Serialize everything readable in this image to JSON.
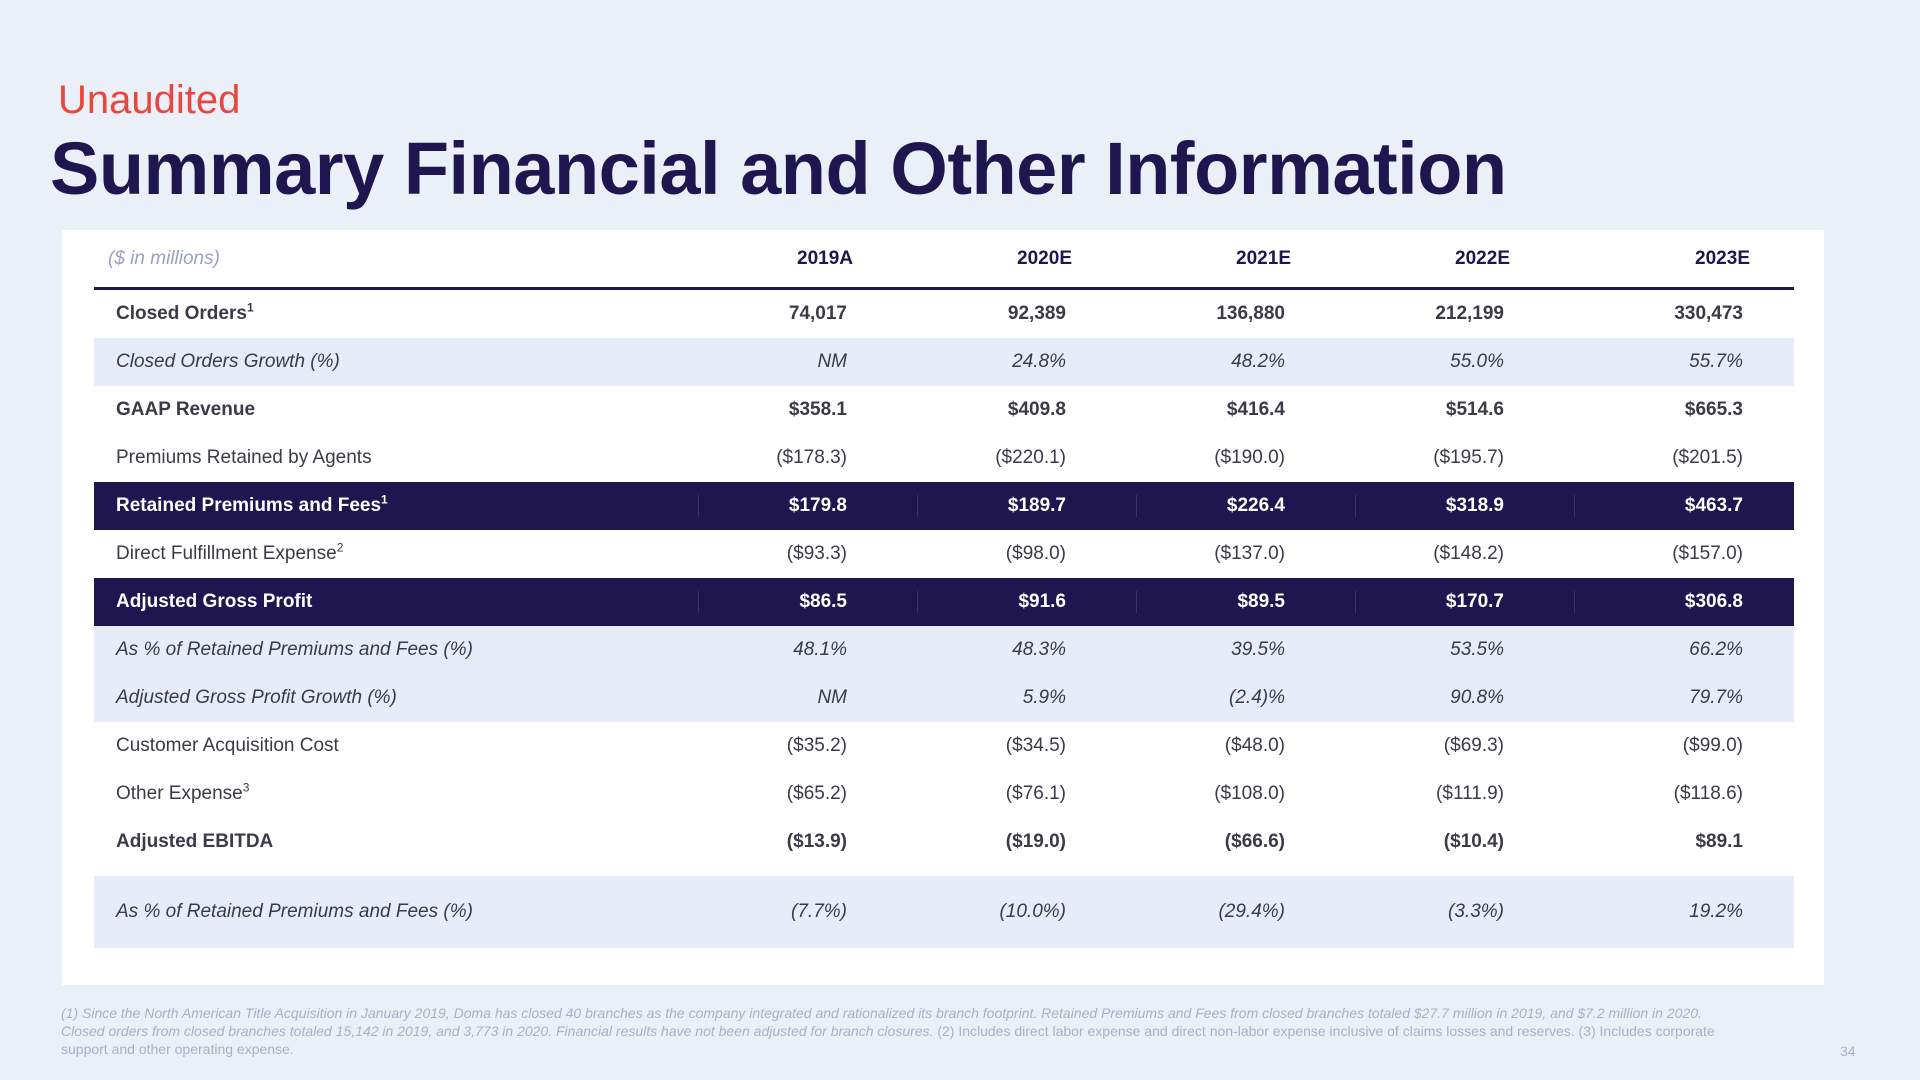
{
  "header": {
    "status": "Unaudited",
    "title": "Summary Financial and Other Information"
  },
  "table": {
    "unit_label": "($ in millions)",
    "columns": [
      "2019A",
      "2020E",
      "2021E",
      "2022E",
      "2023E"
    ],
    "rows": [
      {
        "label": "Closed Orders",
        "sup": "1",
        "values": [
          "74,017",
          "92,389",
          "136,880",
          "212,199",
          "330,473"
        ]
      },
      {
        "label": "Closed Orders Growth (%)",
        "sup": "",
        "values": [
          "NM",
          "24.8%",
          "48.2%",
          "55.0%",
          "55.7%"
        ]
      },
      {
        "label": "GAAP Revenue",
        "sup": "",
        "values": [
          "$358.1",
          "$409.8",
          "$416.4",
          "$514.6",
          "$665.3"
        ]
      },
      {
        "label": "Premiums Retained by Agents",
        "sup": "",
        "values": [
          "($178.3)",
          "($220.1)",
          "($190.0)",
          "($195.7)",
          "($201.5)"
        ]
      },
      {
        "label": "Retained Premiums and Fees",
        "sup": "1",
        "values": [
          "$179.8",
          "$189.7",
          "$226.4",
          "$318.9",
          "$463.7"
        ]
      },
      {
        "label": "Direct Fulfillment Expense",
        "sup": "2",
        "values": [
          "($93.3)",
          "($98.0)",
          "($137.0)",
          "($148.2)",
          "($157.0)"
        ]
      },
      {
        "label": "Adjusted Gross Profit",
        "sup": "",
        "values": [
          "$86.5",
          "$91.6",
          "$89.5",
          "$170.7",
          "$306.8"
        ]
      },
      {
        "label": "As % of Retained Premiums and Fees (%)",
        "sup": "",
        "values": [
          "48.1%",
          "48.3%",
          "39.5%",
          "53.5%",
          "66.2%"
        ]
      },
      {
        "label": "Adjusted Gross Profit Growth (%)",
        "sup": "",
        "values": [
          "NM",
          "5.9%",
          "(2.4)%",
          "90.8%",
          "79.7%"
        ]
      },
      {
        "label": "Customer Acquisition Cost",
        "sup": "",
        "values": [
          "($35.2)",
          "($34.5)",
          "($48.0)",
          "($69.3)",
          "($99.0)"
        ]
      },
      {
        "label": "Other Expense",
        "sup": "3",
        "values": [
          "($65.2)",
          "($76.1)",
          "($108.0)",
          "($111.9)",
          "($118.6)"
        ]
      },
      {
        "label": "Adjusted EBITDA",
        "sup": "",
        "values": [
          "($13.9)",
          "($19.0)",
          "($66.6)",
          "($10.4)",
          "$89.1"
        ]
      },
      {
        "label": "As % of Retained Premiums and Fees (%)",
        "sup": "",
        "values": [
          "(7.7%)",
          "(10.0%)",
          "(29.4%)",
          "(3.3%)",
          "19.2%"
        ]
      }
    ]
  },
  "footnote": {
    "part1_italic": "(1) Since the North American Title Acquisition in January 2019, Doma has closed 40 branches as the company integrated and rationalized its branch footprint. Retained Premiums and Fees from closed branches totaled $27.7 million in 2019, and $7.2 million in 2020.  Closed orders from closed branches totaled 15,142 in 2019, and 3,773 in 2020. Financial results have not been adjusted for branch closures.",
    "part2": " (2) Includes direct labor expense and direct non-labor expense inclusive of claims losses and reserves.  (3) Includes corporate support and other operating expense."
  },
  "page_number": "34"
}
